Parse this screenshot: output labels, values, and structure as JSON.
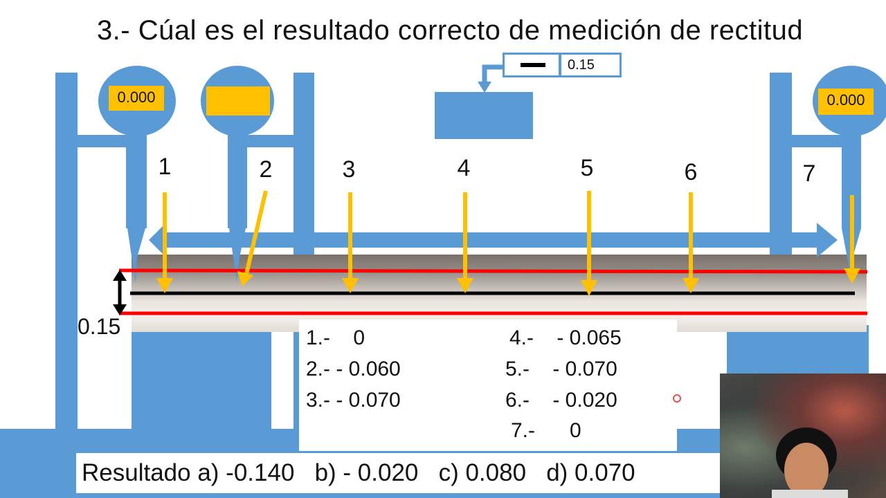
{
  "title": "3.- Cúal es el resultado correcto de medición de rectitud",
  "dials": {
    "left_value": "0.000",
    "right_value": "0.000"
  },
  "indicator": {
    "value": "0.15"
  },
  "points": [
    "1",
    "2",
    "3",
    "4",
    "5",
    "6",
    "7"
  ],
  "tolerance_label": "0.15",
  "answers": [
    {
      "text": "1.-    0"
    },
    {
      "text": "2.- - 0.060"
    },
    {
      "text": "3.- - 0.070"
    },
    {
      "text": "4.-    - 0.065"
    },
    {
      "text": "5.-    - 0.070"
    },
    {
      "text": "6.-    - 0.020"
    },
    {
      "text": "7.-      0"
    }
  ],
  "result_line": "Resultado a) -0.140   b) - 0.020   c) 0.080   d) 0.070",
  "colors": {
    "blue": "#5b9bd5",
    "yellow": "#ffc000",
    "red": "#ff0000",
    "black": "#000000"
  }
}
